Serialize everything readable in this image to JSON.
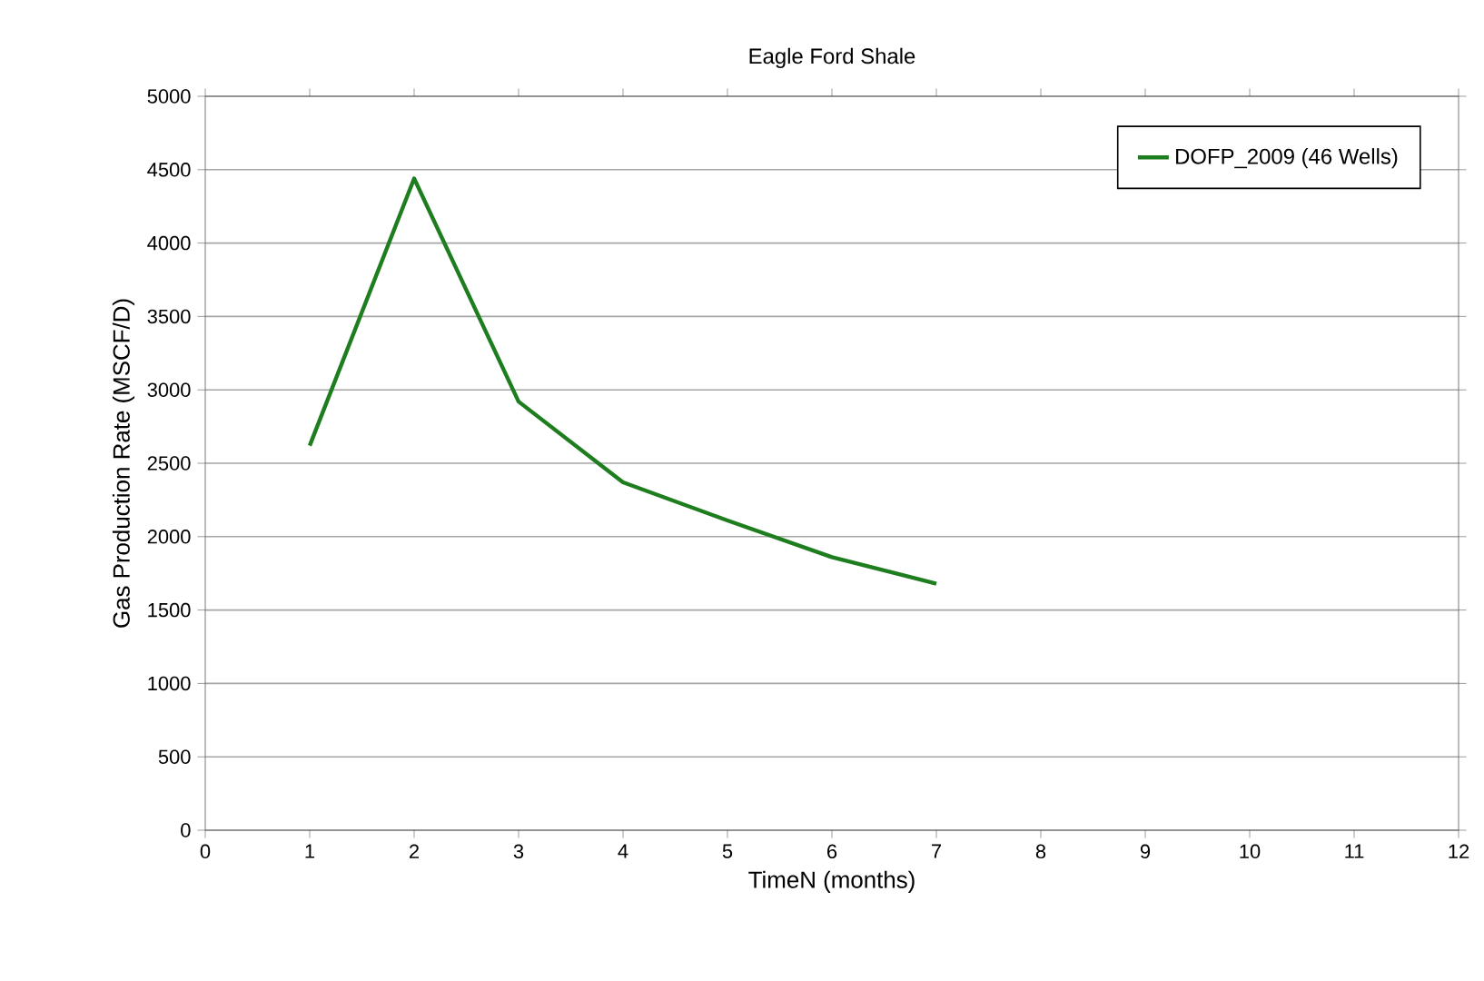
{
  "chart_data": {
    "type": "line",
    "title": "Eagle Ford Shale",
    "xlabel": "TimeN (months)",
    "ylabel": "Gas Production Rate (MSCF/D)",
    "x": [
      1,
      2,
      3,
      4,
      5,
      6,
      7
    ],
    "series": [
      {
        "name": "DOFP_2009 (46 Wells)",
        "color": "#1e7d1e",
        "values": [
          2620,
          4440,
          2920,
          2370,
          2110,
          1860,
          1680
        ]
      }
    ],
    "xlim": [
      0,
      12
    ],
    "xticks": [
      0,
      1,
      2,
      3,
      4,
      5,
      6,
      7,
      8,
      9,
      10,
      11,
      12
    ],
    "ylim": [
      0,
      5000
    ],
    "yticks": [
      0,
      500,
      1000,
      1500,
      2000,
      2500,
      3000,
      3500,
      4000,
      4500,
      5000
    ],
    "grid": "y",
    "legend": "top right",
    "marker": "none",
    "line_style": "solid"
  }
}
